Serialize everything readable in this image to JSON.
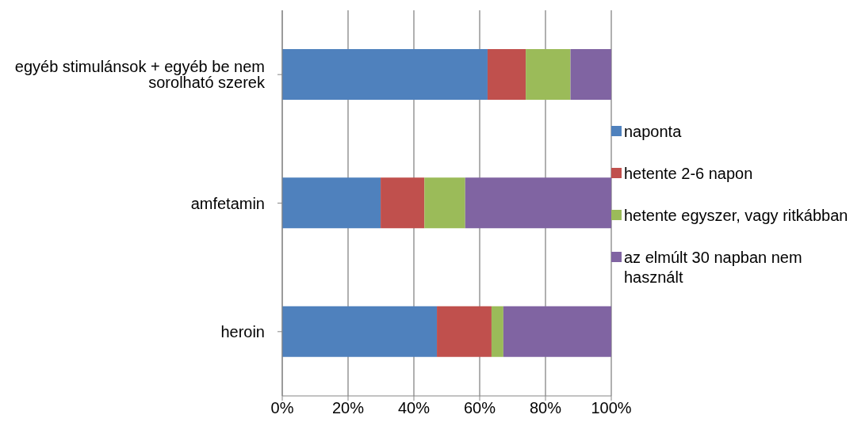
{
  "chart_data": {
    "type": "bar",
    "orientation": "horizontal",
    "stacked": true,
    "categories": [
      "egyéb stimulánsok + egyéb be nem sorolható szerek",
      "amfetamin",
      "heroin"
    ],
    "series": [
      {
        "name": "naponta",
        "color": "#4f81bd",
        "values": [
          62.4,
          29.9,
          47.0
        ]
      },
      {
        "name": "hetente 2-6 napon",
        "color": "#c0504d",
        "values": [
          11.6,
          13.3,
          16.6
        ]
      },
      {
        "name": "hetente egyszer, vagy ritkábban",
        "color": "#9bbb59",
        "values": [
          13.6,
          12.4,
          3.6
        ]
      },
      {
        "name": "az elmúlt 30 napban nem használt",
        "color": "#8064a2",
        "values": [
          12.4,
          44.4,
          32.8
        ]
      }
    ],
    "xlim": [
      0,
      100
    ],
    "xticks": [
      {
        "value": 0,
        "label": "0%"
      },
      {
        "value": 20,
        "label": "20%"
      },
      {
        "value": 40,
        "label": "40%"
      },
      {
        "value": 60,
        "label": "60%"
      },
      {
        "value": 80,
        "label": "80%"
      },
      {
        "value": 100,
        "label": "100%"
      }
    ],
    "grid": "x",
    "legend": "right"
  }
}
